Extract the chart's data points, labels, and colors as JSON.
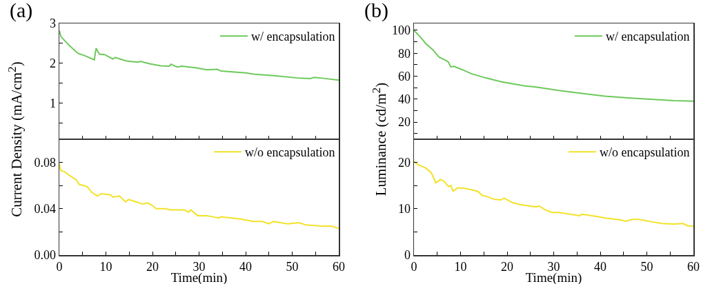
{
  "chart_data": [
    {
      "type": "line",
      "title": "(a)",
      "tick_labels": "y",
      "legend": "top right",
      "xlim": [
        0,
        60
      ],
      "ylim": [
        0.1,
        3
      ],
      "xticks": [
        0,
        {
          "value": 5,
          "label": null
        },
        10,
        {
          "value": 15,
          "label": null
        },
        20,
        {
          "value": 25,
          "label": null
        },
        30,
        {
          "value": 35,
          "label": null
        },
        40,
        {
          "value": 45,
          "label": null
        },
        50,
        {
          "value": 55,
          "label": null
        },
        60
      ],
      "yticks": [
        {
          "value": 0.5,
          "label": null
        },
        1,
        {
          "value": 1.5,
          "label": null
        },
        2,
        {
          "value": 2.5,
          "label": null
        },
        3
      ],
      "x": [
        0,
        0.35,
        2.1,
        4,
        5.5,
        7.5,
        7.9,
        8.6,
        9.7,
        11.5,
        12,
        14.4,
        16.9,
        17.4,
        19.4,
        21.8,
        23.6,
        24,
        25.3,
        26.3,
        29.2,
        31.7,
        33.9,
        34.7,
        40.1,
        41.6,
        46.5,
        51.5,
        53.9,
        54.7,
        56.4,
        60
      ],
      "series": [
        {
          "name": "w/ encapsulation",
          "color": "#6cc95a",
          "values": [
            2.82,
            2.67,
            2.45,
            2.25,
            2.19,
            2.09,
            2.38,
            2.23,
            2.22,
            2.11,
            2.15,
            2.06,
            2.03,
            2.05,
            1.99,
            1.94,
            1.93,
            1.98,
            1.91,
            1.93,
            1.89,
            1.84,
            1.85,
            1.81,
            1.76,
            1.73,
            1.69,
            1.63,
            1.62,
            1.65,
            1.63,
            1.58
          ]
        }
      ]
    },
    {
      "type": "line",
      "xlabel": "Time(min)",
      "ylabel": "Current Density (mA/cm$^{2}$)",
      "legend": "top right",
      "xlim": [
        0,
        60
      ],
      "ylim": [
        0,
        0.1
      ],
      "xticks": [
        0,
        {
          "value": 5,
          "label": null
        },
        10,
        {
          "value": 15,
          "label": null
        },
        20,
        {
          "value": 25,
          "label": null
        },
        30,
        {
          "value": 35,
          "label": null
        },
        40,
        {
          "value": 45,
          "label": null
        },
        50,
        {
          "value": 55,
          "label": null
        },
        60
      ],
      "yticks": [
        {
          "value": 0,
          "label": "0.00"
        },
        {
          "value": 0.02,
          "label": null
        },
        {
          "value": 0.04,
          "label": "0.04"
        },
        {
          "value": 0.06,
          "label": null
        },
        {
          "value": 0.08,
          "label": "0.08"
        }
      ],
      "x": [
        0,
        0.3,
        1.1,
        2.1,
        3.6,
        4.3,
        5.3,
        6,
        7,
        8.2,
        9,
        11,
        11.5,
        12.9,
        14.2,
        14.9,
        16.4,
        17.9,
        18.9,
        19.9,
        20.8,
        22.8,
        23.8,
        26.8,
        27.8,
        28.2,
        29.7,
        31.7,
        34.2,
        34.7,
        39.1,
        41.6,
        43.6,
        45,
        46,
        49,
        51.5,
        52.9,
        56.4,
        58.4,
        60
      ],
      "series": [
        {
          "name": "w/o encapsulation",
          "color": "#f2e227",
          "values": [
            0.079,
            0.073,
            0.072,
            0.069,
            0.065,
            0.061,
            0.06,
            0.059,
            0.054,
            0.051,
            0.053,
            0.052,
            0.05,
            0.051,
            0.046,
            0.048,
            0.046,
            0.044,
            0.045,
            0.043,
            0.04,
            0.04,
            0.039,
            0.039,
            0.037,
            0.039,
            0.034,
            0.034,
            0.032,
            0.033,
            0.031,
            0.029,
            0.029,
            0.027,
            0.029,
            0.027,
            0.028,
            0.026,
            0.025,
            0.025,
            0.023
          ]
        }
      ]
    },
    {
      "type": "line",
      "title": "(b)",
      "tick_labels": "y",
      "legend": "top right",
      "xlim": [
        0,
        60
      ],
      "ylim": [
        5,
        106
      ],
      "xticks": [
        0,
        {
          "value": 5,
          "label": null
        },
        10,
        {
          "value": 15,
          "label": null
        },
        20,
        {
          "value": 25,
          "label": null
        },
        30,
        {
          "value": 35,
          "label": null
        },
        40,
        {
          "value": 45,
          "label": null
        },
        50,
        {
          "value": 55,
          "label": null
        },
        60
      ],
      "yticks": [
        {
          "value": 10,
          "label": null
        },
        20,
        {
          "value": 30,
          "label": null
        },
        40,
        {
          "value": 50,
          "label": null
        },
        60,
        {
          "value": 70,
          "label": null
        },
        80,
        {
          "value": 90,
          "label": null
        },
        100
      ],
      "x": [
        0,
        1.5,
        2.5,
        4,
        5.4,
        6.9,
        7.4,
        7.9,
        8.6,
        10.4,
        12.3,
        15.3,
        18.8,
        23.7,
        26.2,
        31.1,
        36,
        41,
        45.9,
        50.9,
        55.8,
        60
      ],
      "series": [
        {
          "name": "w/ encapsulation",
          "color": "#6cc95a",
          "values": [
            100,
            93.6,
            88.6,
            83.2,
            76.6,
            73.6,
            72.2,
            68.2,
            68.6,
            65.6,
            62.2,
            58.6,
            55,
            51.6,
            50.6,
            47.6,
            45,
            42.6,
            41,
            39.8,
            38.6,
            38.2
          ]
        }
      ]
    },
    {
      "type": "line",
      "xlabel": "Time(min)",
      "ylabel": "Luminance (cd/m$^{2}$)",
      "legend": "top right",
      "xlim": [
        0,
        60
      ],
      "ylim": [
        0,
        25
      ],
      "xticks": [
        0,
        {
          "value": 5,
          "label": null
        },
        10,
        {
          "value": 15,
          "label": null
        },
        20,
        {
          "value": 25,
          "label": null
        },
        30,
        {
          "value": 35,
          "label": null
        },
        40,
        {
          "value": 45,
          "label": null
        },
        50,
        {
          "value": 55,
          "label": null
        },
        60
      ],
      "yticks": [
        0,
        {
          "value": 5,
          "label": null
        },
        10,
        {
          "value": 15,
          "label": null
        },
        20
      ],
      "x": [
        0,
        0.7,
        2.5,
        3.7,
        4.7,
        5.7,
        6.4,
        7.4,
        7.9,
        8.4,
        9.4,
        10.9,
        12.8,
        13.8,
        14.6,
        15.8,
        17.3,
        18.8,
        19.3,
        21.2,
        22.7,
        26.2,
        26.9,
        28.1,
        29.6,
        31.1,
        33.6,
        35.6,
        36,
        39.5,
        41,
        44.4,
        45.4,
        46.9,
        48.4,
        50.9,
        53.3,
        55.8,
        57.8,
        58.8,
        60
      ],
      "series": [
        {
          "name": "w/o encapsulation",
          "color": "#f2e227",
          "values": [
            20.2,
            19.6,
            18.8,
            17.8,
            15.6,
            16.3,
            16,
            14.8,
            15,
            13.8,
            14.5,
            14.4,
            14,
            13.7,
            12.9,
            12.6,
            12,
            11.9,
            12.3,
            11.3,
            10.9,
            10.4,
            10.6,
            9.8,
            9.2,
            9.2,
            8.8,
            8.5,
            8.8,
            8.3,
            8,
            7.6,
            7.3,
            7.7,
            7.7,
            7.2,
            6.8,
            6.7,
            6.8,
            6.3,
            6.2
          ]
        }
      ]
    }
  ]
}
